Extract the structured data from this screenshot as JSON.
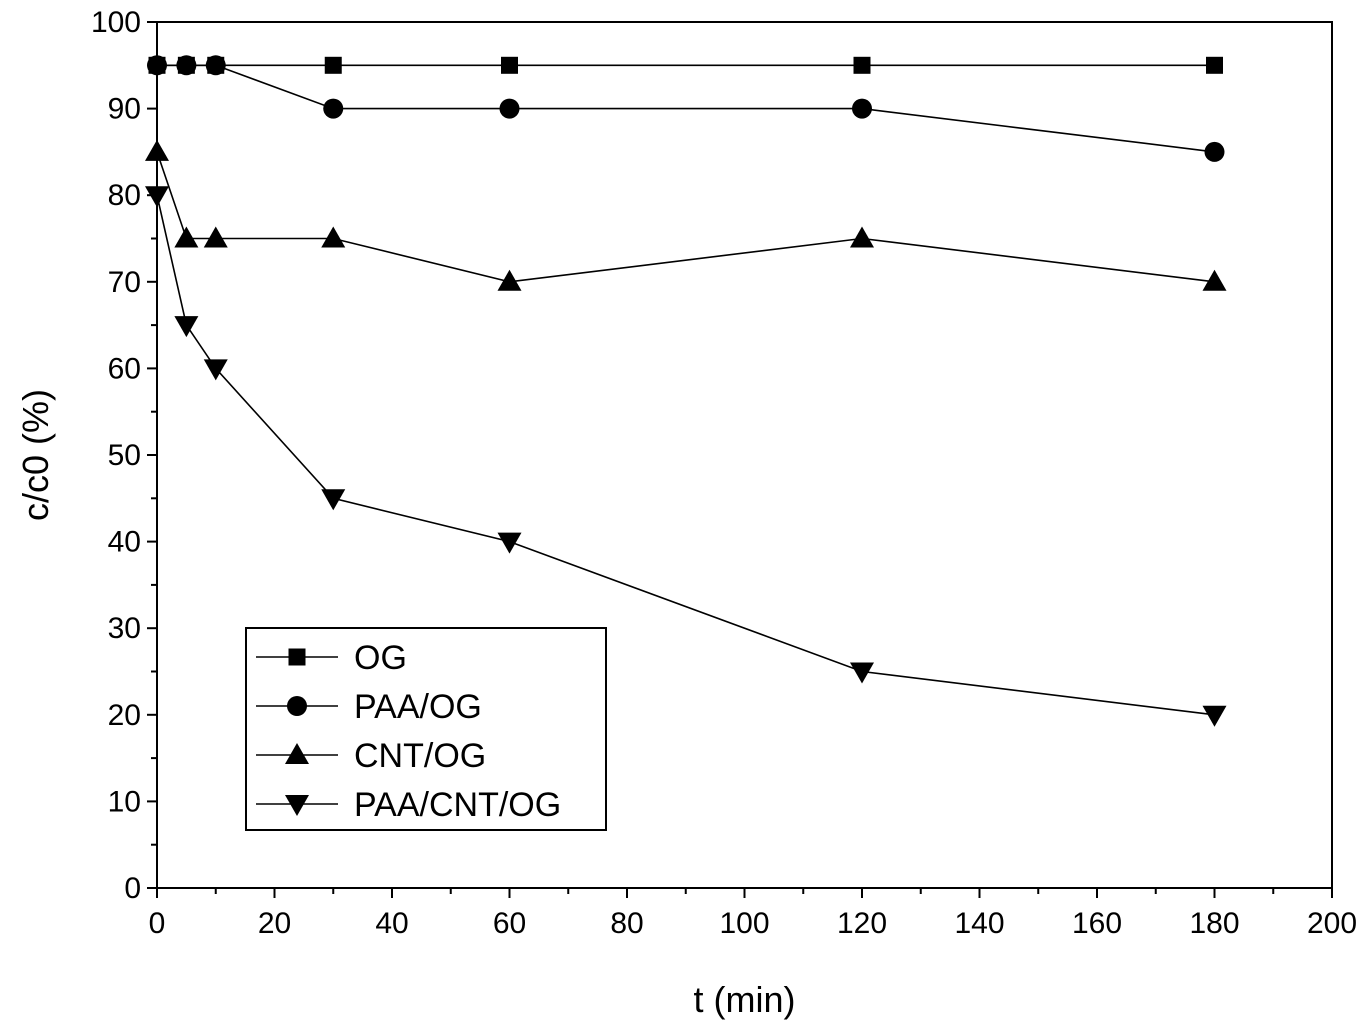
{
  "chart_data": {
    "type": "line",
    "title": "",
    "xlabel": "t (min)",
    "ylabel": "c/c0 (%)",
    "xlim": [
      0,
      200
    ],
    "ylim": [
      0,
      100
    ],
    "xticks": [
      0,
      20,
      40,
      60,
      80,
      100,
      120,
      140,
      160,
      180,
      200
    ],
    "yticks": [
      0,
      10,
      20,
      30,
      40,
      50,
      60,
      70,
      80,
      90,
      100
    ],
    "grid": false,
    "legend_position": "lower-left",
    "x": [
      0,
      5,
      10,
      30,
      60,
      120,
      180
    ],
    "series": [
      {
        "name": "OG",
        "marker": "square",
        "color": "#000000",
        "values": [
          95,
          95,
          95,
          95,
          95,
          95,
          95
        ]
      },
      {
        "name": "PAA/OG",
        "marker": "circle",
        "color": "#000000",
        "values": [
          95,
          95,
          95,
          90,
          90,
          90,
          85
        ]
      },
      {
        "name": "CNT/OG",
        "marker": "triangle-up",
        "color": "#000000",
        "values": [
          85,
          75,
          75,
          75,
          70,
          75,
          70
        ]
      },
      {
        "name": "PAA/CNT/OG",
        "marker": "triangle-down",
        "color": "#000000",
        "values": [
          80,
          65,
          60,
          45,
          40,
          25,
          20
        ]
      }
    ]
  }
}
